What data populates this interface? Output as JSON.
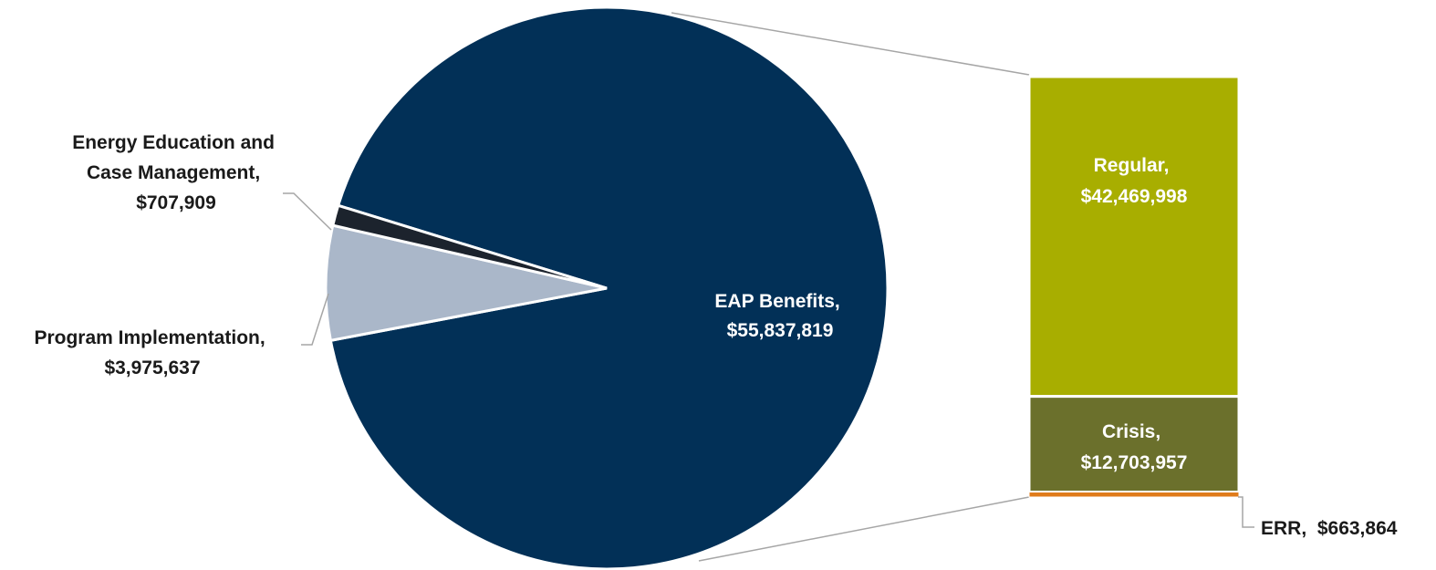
{
  "chart_data": {
    "type": "pie",
    "subtype": "bar-of-pie",
    "pie": {
      "slices": [
        {
          "name": "EAP Benefits",
          "value": 55837819,
          "label_line1": "EAP Benefits,",
          "label_line2": "$55,837,819",
          "color": "#023057"
        },
        {
          "name": "Program Implementation",
          "value": 3975637,
          "label_line1": "Program Implementation,",
          "label_line2": "$3,975,637",
          "color": "#aab7c9"
        },
        {
          "name": "Energy Education and Case Management",
          "value": 707909,
          "label_line1": "Energy Education and",
          "label_line2": "Case Management,",
          "label_line3": "$707,909",
          "color": "#1c232d"
        }
      ]
    },
    "bar": {
      "parent": "EAP Benefits",
      "segments": [
        {
          "name": "Regular",
          "value": 42469998,
          "label_line1": "Regular,",
          "label_line2": "$42,469,998",
          "color": "#a8ae00"
        },
        {
          "name": "Crisis",
          "value": 12703957,
          "label_line1": "Crisis,",
          "label_line2": "$12,703,957",
          "color": "#6b702c"
        },
        {
          "name": "ERR",
          "value": 663864,
          "label_line1": "ERR,  $663,864",
          "color": "#e07b1a"
        }
      ]
    },
    "colors": {
      "label_dark": "#1a1a1a",
      "label_light": "#ffffff",
      "leader_line": "#a6a6a6"
    }
  }
}
